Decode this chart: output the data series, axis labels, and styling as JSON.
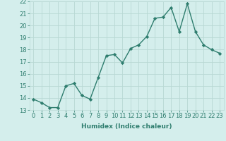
{
  "x": [
    0,
    1,
    2,
    3,
    4,
    5,
    6,
    7,
    8,
    9,
    10,
    11,
    12,
    13,
    14,
    15,
    16,
    17,
    18,
    19,
    20,
    21,
    22,
    23
  ],
  "y": [
    13.9,
    13.6,
    13.2,
    13.2,
    15.0,
    15.2,
    14.2,
    13.9,
    15.7,
    17.5,
    17.6,
    16.9,
    18.1,
    18.4,
    19.1,
    20.6,
    20.7,
    21.5,
    19.5,
    21.8,
    19.5,
    18.4,
    18.0,
    17.7
  ],
  "line_color": "#2e7d6e",
  "marker": "D",
  "marker_size": 2.2,
  "bg_color": "#d4eeec",
  "grid_color": "#b8d8d4",
  "xlabel": "Humidex (Indice chaleur)",
  "xlim": [
    -0.5,
    23.5
  ],
  "ylim": [
    13,
    22
  ],
  "yticks": [
    13,
    14,
    15,
    16,
    17,
    18,
    19,
    20,
    21,
    22
  ],
  "xticks": [
    0,
    1,
    2,
    3,
    4,
    5,
    6,
    7,
    8,
    9,
    10,
    11,
    12,
    13,
    14,
    15,
    16,
    17,
    18,
    19,
    20,
    21,
    22,
    23
  ],
  "xlabel_fontsize": 6.5,
  "tick_fontsize": 6.0,
  "linewidth": 1.0
}
